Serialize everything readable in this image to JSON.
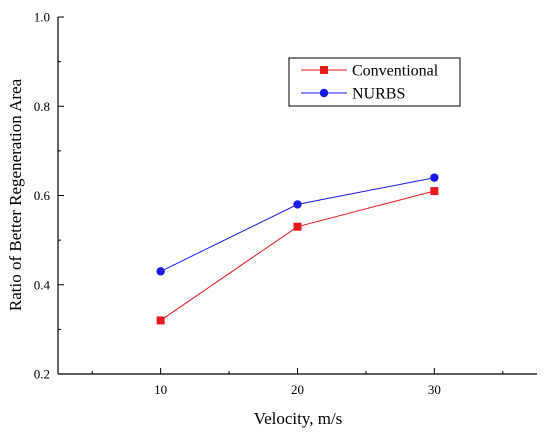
{
  "chart_data": {
    "type": "line",
    "title": "",
    "xlabel": "Velocity, m/s",
    "ylabel": "Ratio of Better Regeneration Area",
    "x": [
      10,
      20,
      30
    ],
    "xlim": [
      2.5,
      37.5
    ],
    "ylim": [
      0.2,
      1.0
    ],
    "xticks": [
      "10",
      "20",
      "30"
    ],
    "yticks": [
      "0.2",
      "0.4",
      "0.6",
      "0.8",
      "1.0"
    ],
    "grid": false,
    "legend_position": "top-right",
    "series": [
      {
        "name": "Conventional",
        "values": [
          0.32,
          0.53,
          0.61
        ],
        "color": "#e8191b",
        "marker": "square"
      },
      {
        "name": "NURBS",
        "values": [
          0.43,
          0.58,
          0.64
        ],
        "color": "#1a1ae6",
        "marker": "circle"
      }
    ]
  }
}
